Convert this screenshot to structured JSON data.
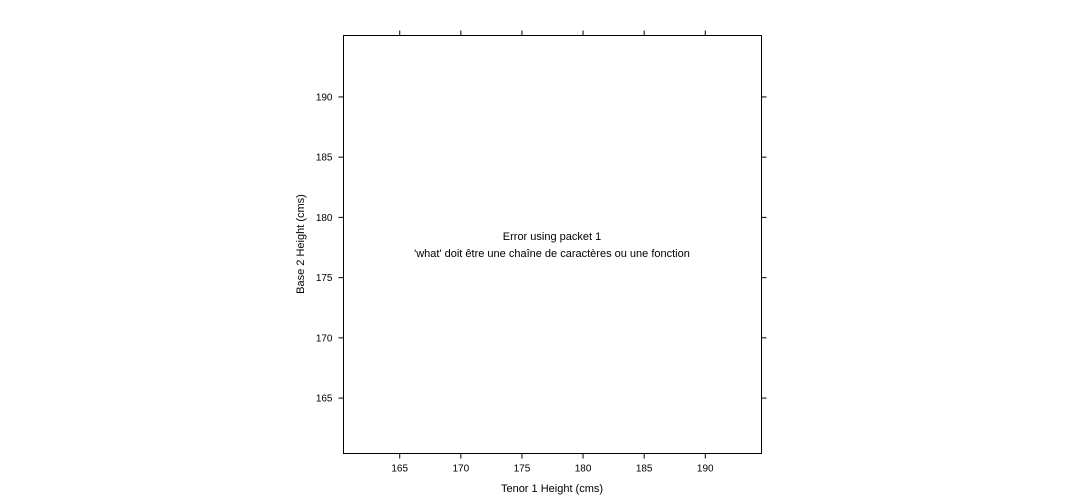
{
  "chart_data": {
    "type": "scatter",
    "xlabel": "Tenor 1 Height (cms)",
    "ylabel": "Base 2 Height (cms)",
    "xlim": [
      160.4,
      194.6
    ],
    "ylim": [
      160.4,
      195.1
    ],
    "xticks": [
      165,
      170,
      175,
      180,
      185,
      190
    ],
    "yticks": [
      165,
      170,
      175,
      180,
      185,
      190
    ],
    "x_tick_labels": [
      "165",
      "170",
      "175",
      "180",
      "185",
      "190"
    ],
    "y_tick_labels": [
      "165",
      "170",
      "175",
      "180",
      "185",
      "190"
    ],
    "grid": false,
    "series": [],
    "annotations": [
      "Error using packet 1",
      "'what' doit être une chaîne de caractères ou une fonction"
    ]
  }
}
